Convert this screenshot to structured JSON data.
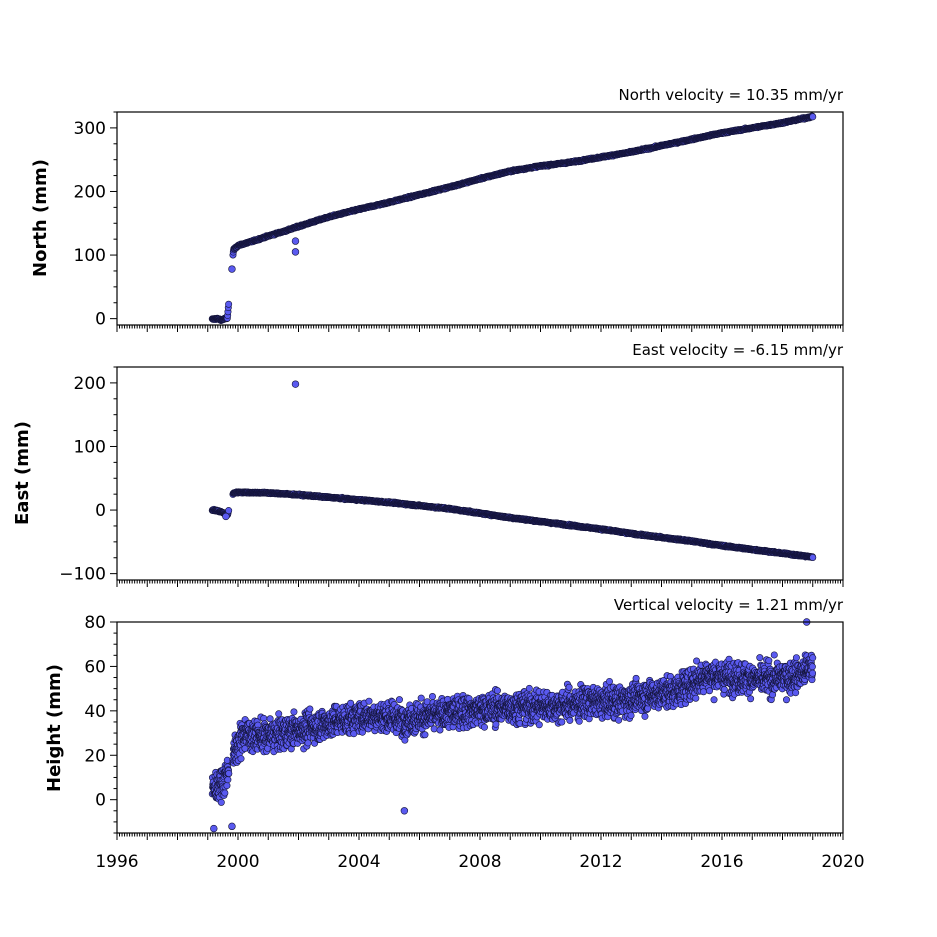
{
  "chart_data": [
    {
      "type": "scatter",
      "title": "North velocity = 10.35 mm/yr",
      "ylabel": "North (mm)",
      "xlim": [
        1996,
        2020
      ],
      "ylim": [
        -10,
        325
      ],
      "yticks": [
        0,
        100,
        200,
        300
      ],
      "velocity_mm_per_yr": 10.35,
      "color": "#5a5af0",
      "x": [
        1999.15,
        1999.3,
        1999.45,
        1999.65,
        1999.85,
        2000.0,
        2000.5,
        2001.0,
        2001.5,
        2002.0,
        2003.0,
        2004.0,
        2005.0,
        2006.0,
        2007.0,
        2008.0,
        2009.0,
        2010.0,
        2011.0,
        2012.0,
        2013.0,
        2014.0,
        2015.0,
        2016.0,
        2017.0,
        2018.0,
        2019.0
      ],
      "y": [
        -1,
        0,
        -2,
        1,
        108,
        115,
        122,
        130,
        137,
        145,
        160,
        172,
        183,
        195,
        207,
        220,
        232,
        240,
        246,
        254,
        262,
        272,
        282,
        292,
        300,
        308,
        318
      ],
      "outliers": [
        {
          "x": 1999.8,
          "y": 78
        },
        {
          "x": 2001.9,
          "y": 122
        },
        {
          "x": 2001.9,
          "y": 105
        }
      ]
    },
    {
      "type": "scatter",
      "title": "East velocity = -6.15 mm/yr",
      "ylabel": "East (mm)",
      "xlim": [
        1996,
        2020
      ],
      "ylim": [
        -110,
        225
      ],
      "yticks": [
        -100,
        0,
        100,
        200
      ],
      "velocity_mm_per_yr": -6.15,
      "color": "#5a5af0",
      "x": [
        1999.15,
        1999.3,
        1999.45,
        1999.65,
        1999.85,
        2000.0,
        2001.0,
        2002.0,
        2003.0,
        2004.0,
        2005.0,
        2006.0,
        2007.0,
        2008.0,
        2009.0,
        2010.0,
        2011.0,
        2012.0,
        2013.0,
        2014.0,
        2015.0,
        2016.0,
        2017.0,
        2018.0,
        2019.0
      ],
      "y": [
        0,
        -1,
        -3,
        -8,
        27,
        28,
        27,
        24,
        20,
        16,
        12,
        7,
        2,
        -5,
        -12,
        -18,
        -24,
        -30,
        -37,
        -43,
        -49,
        -56,
        -62,
        -68,
        -74
      ],
      "outliers": [
        {
          "x": 2001.9,
          "y": 198
        },
        {
          "x": 1999.6,
          "y": -10
        }
      ]
    },
    {
      "type": "scatter",
      "title": "Vertical velocity = 1.21 mm/yr",
      "ylabel": "Height (mm)",
      "xlabel": "",
      "xlim": [
        1996,
        2020
      ],
      "ylim": [
        -15,
        80
      ],
      "yticks": [
        0,
        20,
        40,
        60,
        80
      ],
      "xticks": [
        1996,
        2000,
        2004,
        2008,
        2012,
        2016,
        2020
      ],
      "velocity_mm_per_yr": 1.21,
      "color": "#5a5af0",
      "x": [
        1999.15,
        1999.5,
        1999.85,
        2000.2,
        2000.8,
        2001.5,
        2002.5,
        2003.5,
        2004.5,
        2005.5,
        2006.5,
        2007.5,
        2008.5,
        2009.5,
        2010.5,
        2011.5,
        2012.5,
        2013.5,
        2014.5,
        2015.5,
        2016.5,
        2017.5,
        2018.5,
        2019.0
      ],
      "y": [
        5,
        8,
        20,
        30,
        28,
        30,
        33,
        36,
        38,
        36,
        38,
        40,
        41,
        42,
        42,
        44,
        44,
        47,
        49,
        56,
        55,
        54,
        56,
        60
      ],
      "spread_mm": 8,
      "outliers": [
        {
          "x": 2005.5,
          "y": -5
        },
        {
          "x": 1999.2,
          "y": -13
        },
        {
          "x": 1999.8,
          "y": -12
        },
        {
          "x": 2018.8,
          "y": 80
        }
      ]
    }
  ]
}
